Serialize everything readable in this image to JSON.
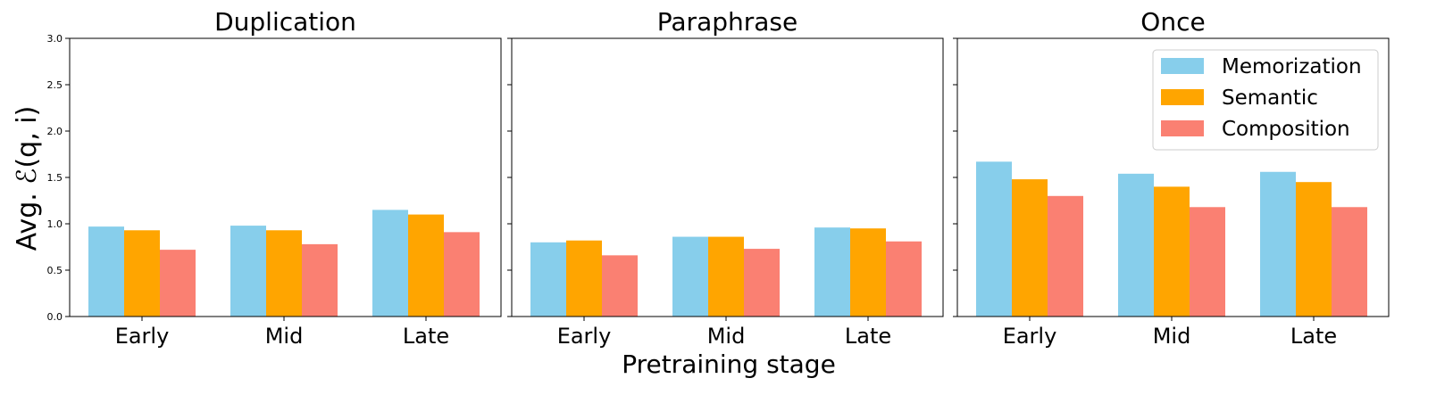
{
  "figure": {
    "ylabel": "Avg. ℰ(q, i)",
    "xlabel": "Pretraining stage"
  },
  "legend": {
    "placement": "upper-right of last panel",
    "entries": [
      "Memorization",
      "Semantic",
      "Composition"
    ]
  },
  "colors": {
    "Memorization": "#87CEEB",
    "Semantic": "#FFA500",
    "Composition": "#FA8072"
  },
  "chart_data": [
    {
      "type": "bar",
      "title": "Duplication",
      "categories": [
        "Early",
        "Mid",
        "Late"
      ],
      "series": [
        {
          "name": "Memorization",
          "values": [
            0.97,
            0.98,
            1.15
          ]
        },
        {
          "name": "Semantic",
          "values": [
            0.93,
            0.93,
            1.1
          ]
        },
        {
          "name": "Composition",
          "values": [
            0.72,
            0.78,
            0.91
          ]
        }
      ],
      "ylim": [
        0,
        3.0
      ],
      "yticks": [
        "0.0",
        "0.5",
        "1.0",
        "1.5",
        "2.0",
        "2.5",
        "3.0"
      ]
    },
    {
      "type": "bar",
      "title": "Paraphrase",
      "categories": [
        "Early",
        "Mid",
        "Late"
      ],
      "series": [
        {
          "name": "Memorization",
          "values": [
            0.8,
            0.86,
            0.96
          ]
        },
        {
          "name": "Semantic",
          "values": [
            0.82,
            0.86,
            0.95
          ]
        },
        {
          "name": "Composition",
          "values": [
            0.66,
            0.73,
            0.81
          ]
        }
      ],
      "ylim": [
        0,
        3.0
      ]
    },
    {
      "type": "bar",
      "title": "Once",
      "categories": [
        "Early",
        "Mid",
        "Late"
      ],
      "series": [
        {
          "name": "Memorization",
          "values": [
            1.67,
            1.54,
            1.56
          ]
        },
        {
          "name": "Semantic",
          "values": [
            1.48,
            1.4,
            1.45
          ]
        },
        {
          "name": "Composition",
          "values": [
            1.3,
            1.18,
            1.18
          ]
        }
      ],
      "ylim": [
        0,
        3.0
      ]
    }
  ]
}
